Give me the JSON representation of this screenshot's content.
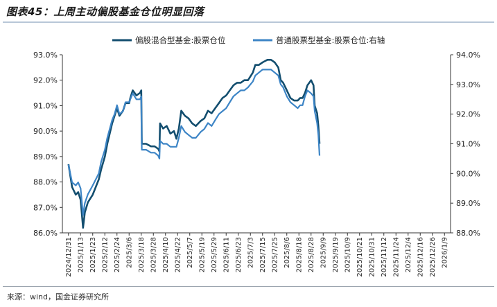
{
  "header": {
    "title": "图表45：上周主动偏股基金仓位明显回落"
  },
  "footer": {
    "source": "来源：wind，国金证券研究所"
  },
  "colors": {
    "series1": "#134e6f",
    "series2": "#3d85c6",
    "axis": "#333333"
  },
  "chart_data": {
    "type": "line",
    "title": "",
    "legend_position": "top",
    "grid": false,
    "x_ticks": [
      "2024/12/31",
      "2025/1/13",
      "2025/1/23",
      "2025/2/12",
      "2025/2/24",
      "2025/3/6",
      "2025/3/18",
      "2025/3/28",
      "2025/4/10",
      "2025/4/22",
      "2025/5/7",
      "2025/5/19",
      "2025/5/29",
      "2025/6/11",
      "2025/6/23",
      "2025/7/3",
      "2025/7/15",
      "2025/7/25",
      "2025/8/6",
      "2025/8/18",
      "2025/8/28",
      "2025/9/9",
      "2025/9/19",
      "2025/10/9",
      "2025/10/21",
      "2025/10/31",
      "2025/11/12",
      "2025/11/24",
      "2025/12/4",
      "2025/12/16",
      "2025/12/26",
      "2026/1/9"
    ],
    "y_left": {
      "min": 86.0,
      "max": 93.0,
      "step": 1.0,
      "ticks": [
        "86.0%",
        "87.0%",
        "88.0%",
        "89.0%",
        "90.0%",
        "91.0%",
        "92.0%",
        "93.0%"
      ]
    },
    "y_right": {
      "min": 88.0,
      "max": 94.0,
      "step": 1.0,
      "ticks": [
        "88.0%",
        "89.0%",
        "90.0%",
        "91.0%",
        "92.0%",
        "93.0%",
        "94.0%"
      ]
    },
    "series": [
      {
        "name": "偏股混合型基金:股票仓位",
        "axis": "left",
        "points": [
          [
            0,
            88.7
          ],
          [
            0.3,
            87.8
          ],
          [
            0.6,
            87.5
          ],
          [
            0.8,
            87.6
          ],
          [
            1.0,
            87.3
          ],
          [
            1.2,
            86.2
          ],
          [
            1.35,
            86.8
          ],
          [
            1.6,
            87.2
          ],
          [
            2.0,
            87.5
          ],
          [
            2.5,
            88.1
          ],
          [
            2.7,
            88.5
          ],
          [
            3.0,
            89.0
          ],
          [
            3.2,
            89.5
          ],
          [
            3.4,
            89.9
          ],
          [
            3.6,
            90.3
          ],
          [
            3.8,
            90.6
          ],
          [
            4.0,
            90.9
          ],
          [
            4.2,
            90.6
          ],
          [
            4.5,
            90.8
          ],
          [
            4.7,
            91.1
          ],
          [
            5.0,
            91.1
          ],
          [
            5.1,
            91.3
          ],
          [
            5.3,
            91.6
          ],
          [
            5.6,
            91.4
          ],
          [
            5.9,
            91.5
          ],
          [
            6.0,
            91.6
          ],
          [
            6.05,
            89.5
          ],
          [
            6.4,
            89.5
          ],
          [
            6.8,
            89.4
          ],
          [
            7.1,
            89.4
          ],
          [
            7.4,
            89.3
          ],
          [
            7.5,
            89.2
          ],
          [
            7.55,
            90.3
          ],
          [
            7.8,
            90.1
          ],
          [
            8.1,
            90.2
          ],
          [
            8.4,
            89.9
          ],
          [
            8.7,
            90.0
          ],
          [
            8.9,
            89.7
          ],
          [
            9.1,
            90.1
          ],
          [
            9.3,
            90.8
          ],
          [
            9.6,
            90.6
          ],
          [
            9.9,
            90.5
          ],
          [
            10.2,
            90.3
          ],
          [
            10.5,
            90.2
          ],
          [
            10.9,
            90.4
          ],
          [
            11.2,
            90.5
          ],
          [
            11.5,
            90.8
          ],
          [
            11.8,
            90.7
          ],
          [
            12.1,
            90.9
          ],
          [
            12.4,
            91.1
          ],
          [
            12.7,
            91.3
          ],
          [
            13.0,
            91.4
          ],
          [
            13.3,
            91.6
          ],
          [
            13.6,
            91.8
          ],
          [
            13.9,
            91.9
          ],
          [
            14.2,
            91.9
          ],
          [
            14.5,
            92.0
          ],
          [
            14.8,
            92.0
          ],
          [
            15.2,
            92.3
          ],
          [
            15.4,
            92.6
          ],
          [
            15.7,
            92.6
          ],
          [
            16.0,
            92.7
          ],
          [
            16.4,
            92.8
          ],
          [
            16.7,
            92.8
          ],
          [
            17.0,
            92.7
          ],
          [
            17.3,
            92.5
          ],
          [
            17.5,
            92.0
          ],
          [
            17.7,
            91.9
          ],
          [
            18.0,
            91.6
          ],
          [
            18.3,
            91.3
          ],
          [
            18.6,
            91.2
          ],
          [
            18.9,
            91.2
          ],
          [
            19.1,
            91.3
          ],
          [
            19.3,
            91.3
          ],
          [
            19.5,
            91.5
          ],
          [
            19.7,
            91.8
          ],
          [
            20.0,
            92.0
          ],
          [
            20.2,
            91.8
          ],
          [
            20.3,
            91.0
          ],
          [
            20.5,
            90.7
          ],
          [
            20.6,
            90.2
          ],
          [
            20.7,
            89.5
          ]
        ]
      },
      {
        "name": "普通股票型基金:股票仓位:右轴",
        "axis": "right",
        "points": [
          [
            0,
            90.3
          ],
          [
            0.3,
            89.7
          ],
          [
            0.6,
            89.6
          ],
          [
            0.8,
            89.7
          ],
          [
            1.0,
            89.5
          ],
          [
            1.2,
            88.6
          ],
          [
            1.35,
            89.0
          ],
          [
            1.6,
            89.3
          ],
          [
            2.0,
            89.6
          ],
          [
            2.5,
            90.0
          ],
          [
            2.7,
            90.4
          ],
          [
            3.0,
            90.8
          ],
          [
            3.2,
            91.2
          ],
          [
            3.4,
            91.5
          ],
          [
            3.6,
            91.8
          ],
          [
            3.8,
            92.0
          ],
          [
            4.0,
            92.3
          ],
          [
            4.2,
            92.0
          ],
          [
            4.5,
            92.1
          ],
          [
            4.7,
            92.4
          ],
          [
            5.0,
            92.4
          ],
          [
            5.1,
            92.5
          ],
          [
            5.3,
            92.7
          ],
          [
            5.6,
            92.5
          ],
          [
            5.9,
            92.5
          ],
          [
            6.0,
            92.6
          ],
          [
            6.05,
            90.8
          ],
          [
            6.4,
            90.8
          ],
          [
            6.8,
            90.7
          ],
          [
            7.1,
            90.7
          ],
          [
            7.4,
            90.6
          ],
          [
            7.5,
            90.5
          ],
          [
            7.55,
            91.1
          ],
          [
            7.8,
            91.0
          ],
          [
            8.1,
            91.0
          ],
          [
            8.4,
            90.9
          ],
          [
            8.7,
            90.9
          ],
          [
            8.9,
            90.9
          ],
          [
            9.1,
            91.2
          ],
          [
            9.3,
            91.6
          ],
          [
            9.6,
            91.4
          ],
          [
            9.9,
            91.3
          ],
          [
            10.2,
            91.2
          ],
          [
            10.5,
            91.2
          ],
          [
            10.9,
            91.4
          ],
          [
            11.2,
            91.5
          ],
          [
            11.5,
            91.7
          ],
          [
            11.8,
            91.6
          ],
          [
            12.1,
            91.8
          ],
          [
            12.4,
            92.0
          ],
          [
            12.7,
            92.1
          ],
          [
            13.0,
            92.2
          ],
          [
            13.3,
            92.4
          ],
          [
            13.6,
            92.6
          ],
          [
            13.9,
            92.7
          ],
          [
            14.2,
            92.8
          ],
          [
            14.5,
            92.8
          ],
          [
            14.8,
            92.9
          ],
          [
            15.2,
            93.1
          ],
          [
            15.4,
            93.3
          ],
          [
            15.7,
            93.4
          ],
          [
            16.0,
            93.5
          ],
          [
            16.4,
            93.5
          ],
          [
            16.7,
            93.5
          ],
          [
            17.0,
            93.4
          ],
          [
            17.3,
            93.3
          ],
          [
            17.5,
            93.0
          ],
          [
            17.7,
            92.9
          ],
          [
            18.0,
            92.6
          ],
          [
            18.3,
            92.4
          ],
          [
            18.6,
            92.3
          ],
          [
            18.9,
            92.2
          ],
          [
            19.1,
            92.3
          ],
          [
            19.3,
            92.3
          ],
          [
            19.5,
            92.6
          ],
          [
            19.7,
            92.8
          ],
          [
            20.0,
            92.7
          ],
          [
            20.2,
            92.6
          ],
          [
            20.3,
            92.1
          ],
          [
            20.5,
            91.7
          ],
          [
            20.6,
            91.3
          ],
          [
            20.7,
            90.6
          ]
        ]
      }
    ]
  }
}
